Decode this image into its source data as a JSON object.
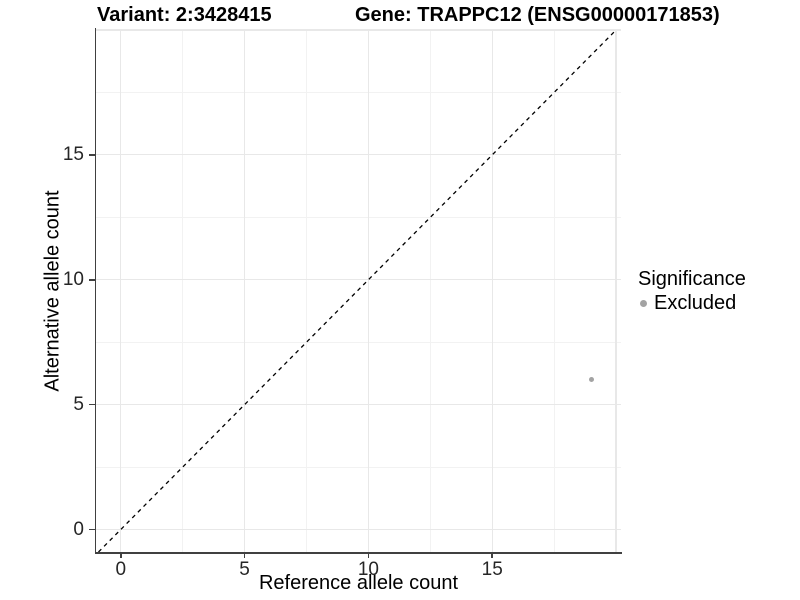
{
  "chart_data": {
    "type": "scatter",
    "titles": {
      "variant": "Variant: 2:3428415",
      "gene": "Gene: TRAPPC12 (ENSG00000171853)"
    },
    "xlabel": "Reference allele count",
    "ylabel": "Alternative allele count",
    "xlim": [
      -1.0,
      20.2
    ],
    "ylim": [
      -0.9,
      20.0
    ],
    "x_ticks": [
      0,
      5,
      10,
      15
    ],
    "y_ticks": [
      0,
      5,
      10,
      15
    ],
    "x_major_gridlines": [
      0,
      5,
      10,
      15,
      20
    ],
    "y_major_gridlines": [
      0,
      5,
      10,
      15,
      20
    ],
    "x_minor_gridlines": [
      2.5,
      7.5,
      12.5,
      17.5
    ],
    "y_minor_gridlines": [
      2.5,
      7.5,
      12.5,
      17.5
    ],
    "grid": true,
    "identity_line": {
      "slope": 1,
      "intercept": 0,
      "style": "dashed",
      "color": "#000000"
    },
    "series": [
      {
        "name": "Excluded",
        "color": "#a3a3a3",
        "points": [
          {
            "x": 19,
            "y": 6
          }
        ]
      }
    ],
    "legend": {
      "title": "Significance",
      "position": "right",
      "items": [
        {
          "label": "Excluded",
          "color": "#a3a3a3"
        }
      ]
    },
    "colors": {
      "background": "#ffffff",
      "axis_line": "#404040",
      "tick_text": "#262626",
      "grid_major": "#e8e8e8",
      "grid_minor": "#f2f2f2"
    }
  }
}
